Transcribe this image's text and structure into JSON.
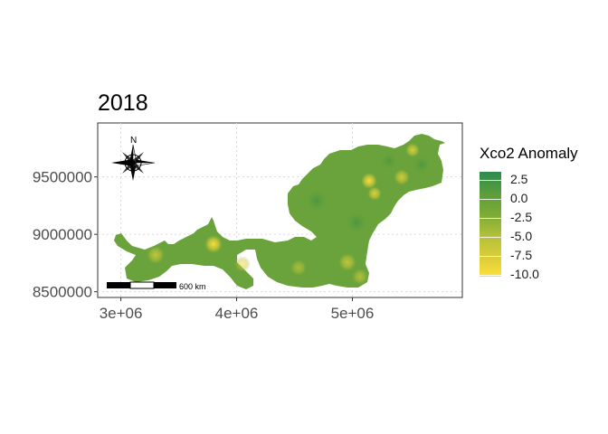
{
  "chart_data": {
    "type": "map",
    "title": "2018",
    "xlabel": "",
    "ylabel": "",
    "x_ticks": [
      {
        "value": 3000000,
        "label": "3e+06"
      },
      {
        "value": 4000000,
        "label": "4e+06"
      },
      {
        "value": 5000000,
        "label": "5e+06"
      }
    ],
    "y_ticks": [
      {
        "value": 8500000,
        "label": "8500000"
      },
      {
        "value": 9000000,
        "label": "9000000"
      },
      {
        "value": 9500000,
        "label": "9500000"
      }
    ],
    "xlim": [
      2800000,
      5950000
    ],
    "ylim": [
      8450000,
      9970000
    ],
    "grid": true,
    "legend": {
      "title": "Xco2 Anomaly",
      "position": "right",
      "labels": [
        "2.5",
        "0.0",
        "-2.5",
        "-5.0",
        "-7.5",
        "-10.0"
      ],
      "colors": [
        "#2e8b4e",
        "#7aab36",
        "#fde038"
      ]
    },
    "north_arrow": {
      "label": "N"
    },
    "scale_bar": {
      "label": "600 km"
    }
  }
}
